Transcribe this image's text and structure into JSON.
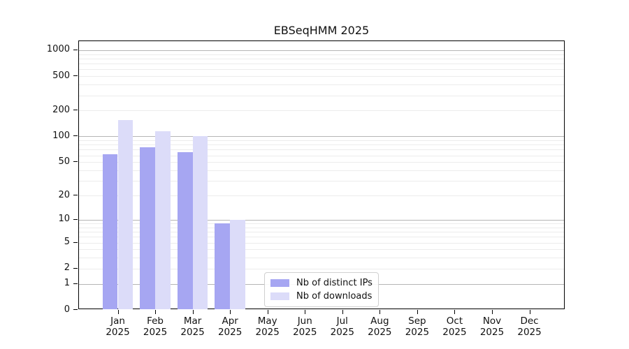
{
  "title": "EBSeqHMM 2025",
  "colors": {
    "distinct_ips": "#a6a6f2",
    "downloads": "#dcdcf9",
    "grid_major": "#b5b5b5",
    "grid_minor": "#ececec",
    "axis": "#000000",
    "text": "#111111",
    "legend_border": "#d0d0d0"
  },
  "legend": {
    "items": [
      {
        "label": "Nb of distinct IPs",
        "color_key": "distinct_ips"
      },
      {
        "label": "Nb of downloads",
        "color_key": "downloads"
      }
    ]
  },
  "chart_data": {
    "type": "bar",
    "title": "EBSeqHMM 2025",
    "categories": [
      "Jan 2025",
      "Feb 2025",
      "Mar 2025",
      "Apr 2025",
      "May 2025",
      "Jun 2025",
      "Jul 2025",
      "Aug 2025",
      "Sep 2025",
      "Oct 2025",
      "Nov 2025",
      "Dec 2025"
    ],
    "series": [
      {
        "name": "Nb of distinct IPs",
        "color_key": "distinct_ips",
        "values": [
          62,
          74,
          65,
          9,
          0,
          0,
          0,
          0,
          0,
          0,
          0,
          0
        ]
      },
      {
        "name": "Nb of downloads",
        "color_key": "downloads",
        "values": [
          155,
          115,
          101,
          10,
          0,
          0,
          0,
          0,
          0,
          0,
          0,
          0
        ]
      }
    ],
    "y_scale": "log1p",
    "y_ticks": [
      0,
      1,
      2,
      5,
      10,
      20,
      50,
      100,
      200,
      500,
      1000
    ],
    "ylim": [
      0,
      1300
    ],
    "xlabel": "",
    "ylabel": "",
    "grid": "horizontal-major-and-minor",
    "legend_position": "inside-bottom-center"
  }
}
